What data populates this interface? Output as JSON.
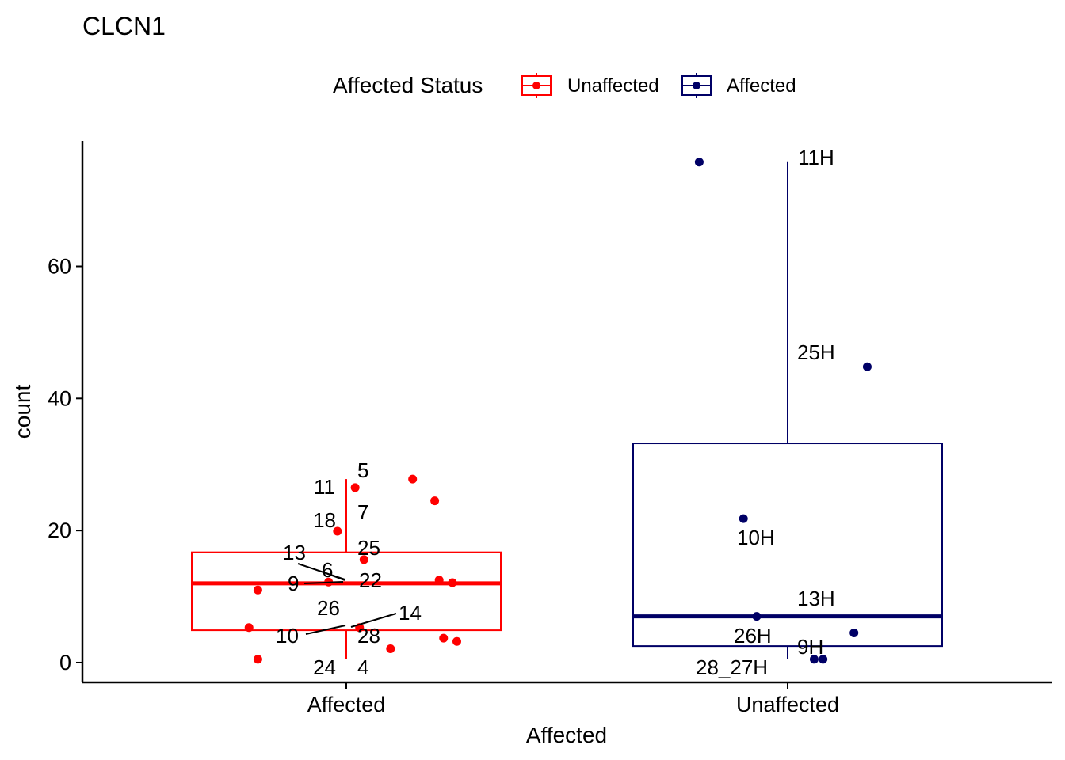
{
  "chart_data": {
    "type": "boxplot",
    "title": "CLCN1",
    "xlabel": "Affected",
    "ylabel": "count",
    "ylim": [
      -3,
      79
    ],
    "yticks": [
      0,
      20,
      40,
      60
    ],
    "categories": [
      "Affected",
      "Unaffected"
    ],
    "legend": {
      "title": "Affected Status",
      "position": "top",
      "entries": [
        {
          "label": "Unaffected",
          "color": "#FF0000"
        },
        {
          "label": "Affected",
          "color": "#000066"
        }
      ]
    },
    "groups": [
      {
        "category": "Affected",
        "status": "Unaffected",
        "color": "#FF0000",
        "box": {
          "whisker_low": 0.5,
          "q1": 4.9,
          "median": 12.0,
          "q3": 16.7,
          "whisker_high": 27.8
        },
        "points": [
          {
            "jitter": -0.22,
            "value": 5.3
          },
          {
            "jitter": -0.2,
            "value": 0.5
          },
          {
            "jitter": -0.2,
            "value": 11.0
          },
          {
            "jitter": -0.04,
            "value": 12.2
          },
          {
            "jitter": -0.02,
            "value": 19.9
          },
          {
            "jitter": 0.02,
            "value": 26.5
          },
          {
            "jitter": 0.03,
            "value": 5.3
          },
          {
            "jitter": 0.04,
            "value": 15.6
          },
          {
            "jitter": 0.1,
            "value": 2.1
          },
          {
            "jitter": 0.15,
            "value": 27.8
          },
          {
            "jitter": 0.2,
            "value": 24.5
          },
          {
            "jitter": 0.21,
            "value": 12.5
          },
          {
            "jitter": 0.22,
            "value": 3.7
          },
          {
            "jitter": 0.24,
            "value": 12.1
          },
          {
            "jitter": 0.25,
            "value": 3.2
          }
        ],
        "labels": [
          "5",
          "11",
          "7",
          "18",
          "25",
          "13",
          "6",
          "9",
          "22",
          "26",
          "14",
          "10",
          "28",
          "24",
          "4"
        ]
      },
      {
        "category": "Unaffected",
        "status": "Affected",
        "color": "#000066",
        "box": {
          "whisker_low": 0.5,
          "q1": 2.5,
          "median": 7.0,
          "q3": 33.2,
          "whisker_high": 75.8
        },
        "points": [
          {
            "jitter": -0.2,
            "value": 75.8
          },
          {
            "jitter": 0.18,
            "value": 44.8
          },
          {
            "jitter": -0.1,
            "value": 21.8
          },
          {
            "jitter": -0.07,
            "value": 7.0
          },
          {
            "jitter": 0.15,
            "value": 4.5
          },
          {
            "jitter": 0.06,
            "value": 0.5
          },
          {
            "jitter": 0.08,
            "value": 0.5
          }
        ],
        "labels": [
          "11H",
          "25H",
          "10H",
          "13H",
          "26H",
          "9H",
          "28_27H"
        ]
      }
    ]
  }
}
